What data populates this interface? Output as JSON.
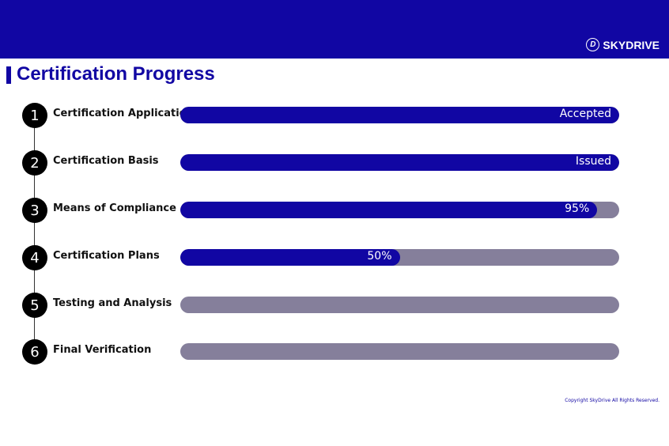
{
  "header": {
    "logo_text": "SKYDRIVE",
    "brand_color": "#1106a3"
  },
  "page_title": "Certification Progress",
  "steps": [
    {
      "number": "1",
      "label": "Certification Application",
      "progress": 100,
      "status": "Accepted"
    },
    {
      "number": "2",
      "label": "Certification Basis",
      "progress": 100,
      "status": "Issued"
    },
    {
      "number": "3",
      "label": "Means of Compliance",
      "progress": 95,
      "status": "95%"
    },
    {
      "number": "4",
      "label": "Certification Plans",
      "progress": 50,
      "status": "50%"
    },
    {
      "number": "5",
      "label": "Testing and Analysis",
      "progress": 0,
      "status": ""
    },
    {
      "number": "6",
      "label": "Final Verification",
      "progress": 0,
      "status": ""
    }
  ],
  "footer": {
    "copyright": "Copyright SkyDrive All Rights Reserved."
  }
}
